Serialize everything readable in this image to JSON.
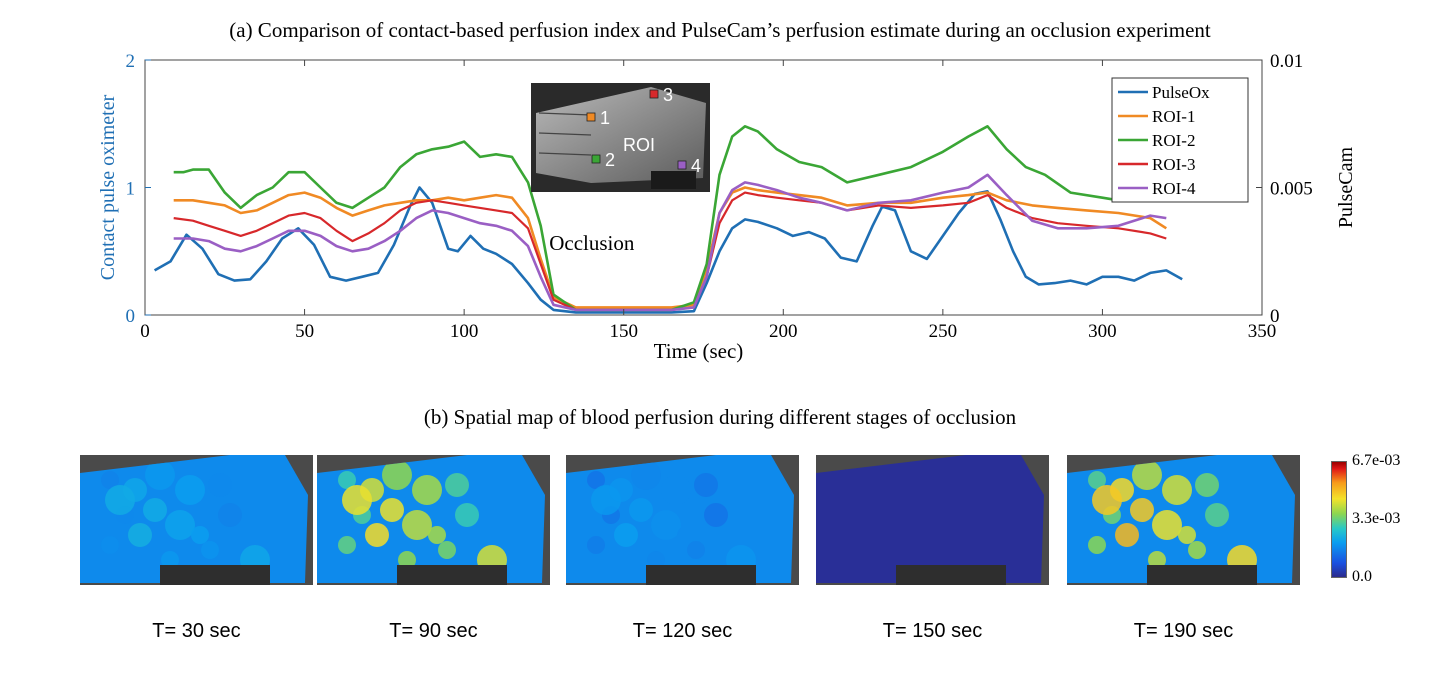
{
  "figure": {
    "title_a": "(a) Comparison of contact-based perfusion index and PulseCam’s perfusion estimate during an occlusion experiment",
    "title_b": "(b) Spatial map of blood perfusion during different stages of occlusion"
  },
  "chart_data": {
    "type": "line",
    "xlabel": "Time (sec)",
    "ylabel": "Contact pulse oximeter",
    "y2label": "PulseCam",
    "xlim": [
      0,
      350
    ],
    "ylim": [
      0,
      2
    ],
    "y2lim": [
      0,
      0.01
    ],
    "xticks": [
      "0",
      "50",
      "100",
      "150",
      "200",
      "250",
      "300",
      "350"
    ],
    "yticks": [
      "0",
      "1",
      "2"
    ],
    "y2ticks": [
      "0",
      "0.005",
      "0.01"
    ],
    "legend_position": "top-right",
    "annotation": "Occlusion",
    "series": [
      {
        "name": "PulseOx",
        "axis": "left",
        "color": "#1f6fb4",
        "x": [
          3,
          8,
          13,
          18,
          23,
          28,
          33,
          38,
          43,
          48,
          53,
          58,
          63,
          68,
          73,
          78,
          83,
          86,
          90,
          95,
          98,
          102,
          106,
          110,
          115,
          120,
          124,
          128,
          135,
          145,
          155,
          165,
          172,
          176,
          180,
          184,
          188,
          192,
          198,
          203,
          208,
          213,
          218,
          223,
          228,
          231,
          235,
          240,
          245,
          250,
          255,
          260,
          264,
          268,
          272,
          276,
          280,
          285,
          290,
          295,
          300,
          305,
          310,
          315,
          320,
          325
        ],
        "y": [
          0.35,
          0.42,
          0.63,
          0.52,
          0.32,
          0.27,
          0.28,
          0.42,
          0.6,
          0.68,
          0.55,
          0.3,
          0.27,
          0.3,
          0.33,
          0.55,
          0.85,
          1.0,
          0.88,
          0.52,
          0.5,
          0.62,
          0.52,
          0.48,
          0.4,
          0.25,
          0.12,
          0.04,
          0.02,
          0.02,
          0.02,
          0.02,
          0.03,
          0.25,
          0.5,
          0.68,
          0.75,
          0.73,
          0.68,
          0.62,
          0.65,
          0.6,
          0.45,
          0.42,
          0.7,
          0.85,
          0.82,
          0.5,
          0.44,
          0.62,
          0.8,
          0.95,
          0.97,
          0.75,
          0.5,
          0.3,
          0.24,
          0.25,
          0.27,
          0.24,
          0.3,
          0.3,
          0.27,
          0.33,
          0.35,
          0.28
        ]
      },
      {
        "name": "ROI-1",
        "axis": "right",
        "color": "#f08a24",
        "x": [
          9,
          15,
          20,
          25,
          30,
          35,
          40,
          45,
          50,
          55,
          60,
          65,
          70,
          75,
          80,
          85,
          90,
          95,
          100,
          105,
          110,
          115,
          120,
          124,
          128,
          135,
          145,
          155,
          165,
          172,
          176,
          180,
          184,
          188,
          192,
          198,
          205,
          212,
          220,
          230,
          240,
          250,
          258,
          264,
          270,
          278,
          286,
          295,
          305,
          315,
          320
        ],
        "y": [
          0.0045,
          0.0045,
          0.0044,
          0.0043,
          0.004,
          0.0041,
          0.0044,
          0.0047,
          0.0048,
          0.0046,
          0.0042,
          0.0039,
          0.0041,
          0.0043,
          0.0044,
          0.0045,
          0.0045,
          0.0046,
          0.0045,
          0.0046,
          0.0047,
          0.0046,
          0.0038,
          0.0022,
          0.0007,
          0.0003,
          0.0003,
          0.0003,
          0.0003,
          0.0004,
          0.0018,
          0.004,
          0.0048,
          0.005,
          0.0049,
          0.0048,
          0.0047,
          0.0046,
          0.0043,
          0.0044,
          0.0044,
          0.0046,
          0.0047,
          0.0048,
          0.0045,
          0.0043,
          0.0042,
          0.0041,
          0.004,
          0.0038,
          0.0034
        ]
      },
      {
        "name": "ROI-2",
        "axis": "right",
        "color": "#3aa635",
        "x": [
          9,
          12,
          15,
          20,
          25,
          30,
          35,
          40,
          45,
          50,
          55,
          60,
          65,
          70,
          75,
          80,
          85,
          90,
          95,
          100,
          105,
          110,
          115,
          120,
          124,
          128,
          135,
          145,
          155,
          165,
          172,
          176,
          180,
          184,
          188,
          192,
          198,
          205,
          212,
          220,
          230,
          240,
          250,
          258,
          264,
          270,
          276,
          282,
          290,
          300,
          305
        ],
        "y": [
          0.0056,
          0.0056,
          0.0057,
          0.0057,
          0.0048,
          0.0042,
          0.0047,
          0.005,
          0.0056,
          0.0056,
          0.005,
          0.0044,
          0.0042,
          0.0046,
          0.005,
          0.0058,
          0.0063,
          0.0065,
          0.0066,
          0.0068,
          0.0062,
          0.0063,
          0.0062,
          0.0052,
          0.0035,
          0.0008,
          0.0002,
          0.0002,
          0.0002,
          0.0002,
          0.0005,
          0.002,
          0.0055,
          0.007,
          0.0074,
          0.0072,
          0.0065,
          0.006,
          0.0058,
          0.0052,
          0.0055,
          0.0058,
          0.0064,
          0.007,
          0.0074,
          0.0065,
          0.0058,
          0.0055,
          0.0048,
          0.0046,
          0.0045
        ]
      },
      {
        "name": "ROI-3",
        "axis": "right",
        "color": "#d7282b",
        "x": [
          9,
          15,
          20,
          25,
          30,
          35,
          40,
          45,
          50,
          55,
          60,
          65,
          70,
          75,
          80,
          85,
          90,
          95,
          100,
          105,
          110,
          115,
          120,
          124,
          128,
          135,
          145,
          155,
          165,
          172,
          176,
          180,
          184,
          188,
          192,
          198,
          205,
          212,
          220,
          230,
          240,
          250,
          258,
          264,
          270,
          278,
          286,
          295,
          305,
          315,
          320
        ],
        "y": [
          0.0038,
          0.0037,
          0.0035,
          0.0033,
          0.0031,
          0.0033,
          0.0036,
          0.0039,
          0.004,
          0.0038,
          0.0033,
          0.0029,
          0.0032,
          0.0036,
          0.0041,
          0.0044,
          0.0045,
          0.0044,
          0.0043,
          0.0042,
          0.0041,
          0.004,
          0.0034,
          0.002,
          0.0006,
          0.0002,
          0.0002,
          0.0002,
          0.0002,
          0.0003,
          0.0015,
          0.0036,
          0.0045,
          0.0048,
          0.0047,
          0.0046,
          0.0045,
          0.0044,
          0.0041,
          0.0043,
          0.0042,
          0.0043,
          0.0044,
          0.0047,
          0.0042,
          0.0038,
          0.0036,
          0.0035,
          0.0034,
          0.0032,
          0.003
        ]
      },
      {
        "name": "ROI-4",
        "axis": "right",
        "color": "#9a5fc4",
        "x": [
          9,
          15,
          20,
          25,
          30,
          35,
          40,
          45,
          50,
          55,
          60,
          65,
          70,
          75,
          80,
          85,
          90,
          95,
          100,
          105,
          110,
          115,
          120,
          124,
          128,
          135,
          145,
          155,
          165,
          172,
          176,
          180,
          184,
          188,
          192,
          198,
          205,
          212,
          220,
          230,
          240,
          250,
          258,
          264,
          270,
          278,
          286,
          295,
          305,
          315,
          320
        ],
        "y": [
          0.003,
          0.003,
          0.0029,
          0.0026,
          0.0025,
          0.0027,
          0.003,
          0.0033,
          0.0033,
          0.0031,
          0.0027,
          0.0025,
          0.0026,
          0.0029,
          0.0033,
          0.0038,
          0.0041,
          0.004,
          0.0038,
          0.0036,
          0.0035,
          0.0033,
          0.0027,
          0.0015,
          0.0004,
          0.0002,
          0.0002,
          0.0002,
          0.0002,
          0.0003,
          0.0015,
          0.004,
          0.0049,
          0.0052,
          0.0051,
          0.0049,
          0.0046,
          0.0044,
          0.0041,
          0.0044,
          0.0045,
          0.0048,
          0.005,
          0.0055,
          0.0047,
          0.0037,
          0.0034,
          0.0034,
          0.0035,
          0.0039,
          0.0038
        ]
      }
    ]
  },
  "inset": {
    "center_label": "ROI",
    "markers": [
      {
        "label": "1",
        "color": "#f08a24"
      },
      {
        "label": "2",
        "color": "#3aa635"
      },
      {
        "label": "3",
        "color": "#d7282b"
      },
      {
        "label": "4",
        "color": "#9a5fc4"
      }
    ]
  },
  "colorbar": {
    "ticks": [
      "6.7e-03",
      "3.3e-03",
      "0.0"
    ]
  },
  "maps": [
    {
      "caption": "T= 30 sec",
      "level": 0.35
    },
    {
      "caption": "T= 90 sec",
      "level": 0.65
    },
    {
      "caption": "T= 120 sec",
      "level": 0.3
    },
    {
      "caption": "T= 150 sec",
      "level": 0.0
    },
    {
      "caption": "T= 190 sec",
      "level": 0.7
    }
  ]
}
